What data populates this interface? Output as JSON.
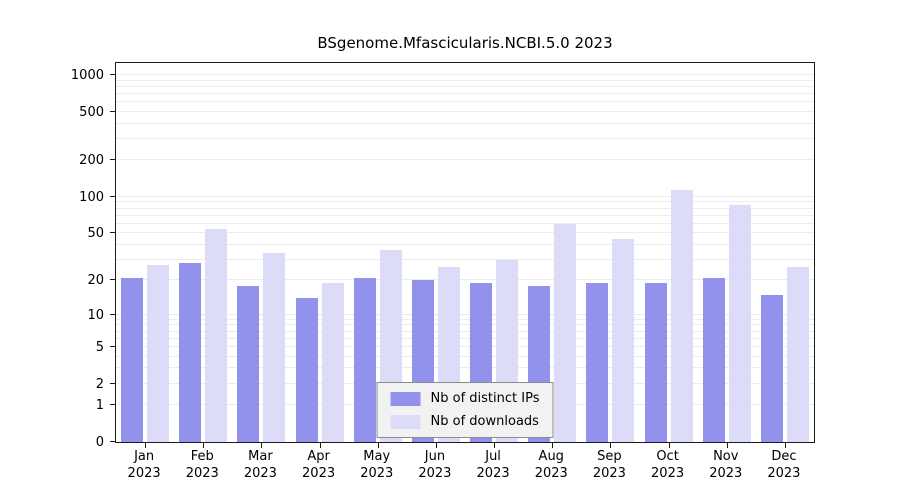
{
  "title": "BSgenome.Mfascicularis.NCBI.5.0 2023",
  "chart_data": {
    "type": "bar",
    "title": "BSgenome.Mfascicularis.NCBI.5.0 2023",
    "categories": [
      "Jan",
      "Feb",
      "Mar",
      "Apr",
      "May",
      "Jun",
      "Jul",
      "Aug",
      "Sep",
      "Oct",
      "Nov",
      "Dec"
    ],
    "year_label": "2023",
    "series": [
      {
        "name": "Nb of distinct IPs",
        "color": "#9292ec",
        "values": [
          21,
          28,
          18,
          14,
          21,
          20,
          19,
          18,
          19,
          19,
          21,
          15
        ]
      },
      {
        "name": "Nb of downloads",
        "color": "#dcdcf9",
        "values": [
          27,
          54,
          34,
          19,
          36,
          26,
          30,
          60,
          45,
          115,
          85,
          26
        ]
      }
    ],
    "yscale": "log1p",
    "yticks": [
      0,
      1,
      2,
      5,
      10,
      20,
      50,
      100,
      200,
      500,
      1000
    ],
    "ylim": [
      0,
      1100
    ],
    "grid": true,
    "legend_position": "bottom-center"
  }
}
